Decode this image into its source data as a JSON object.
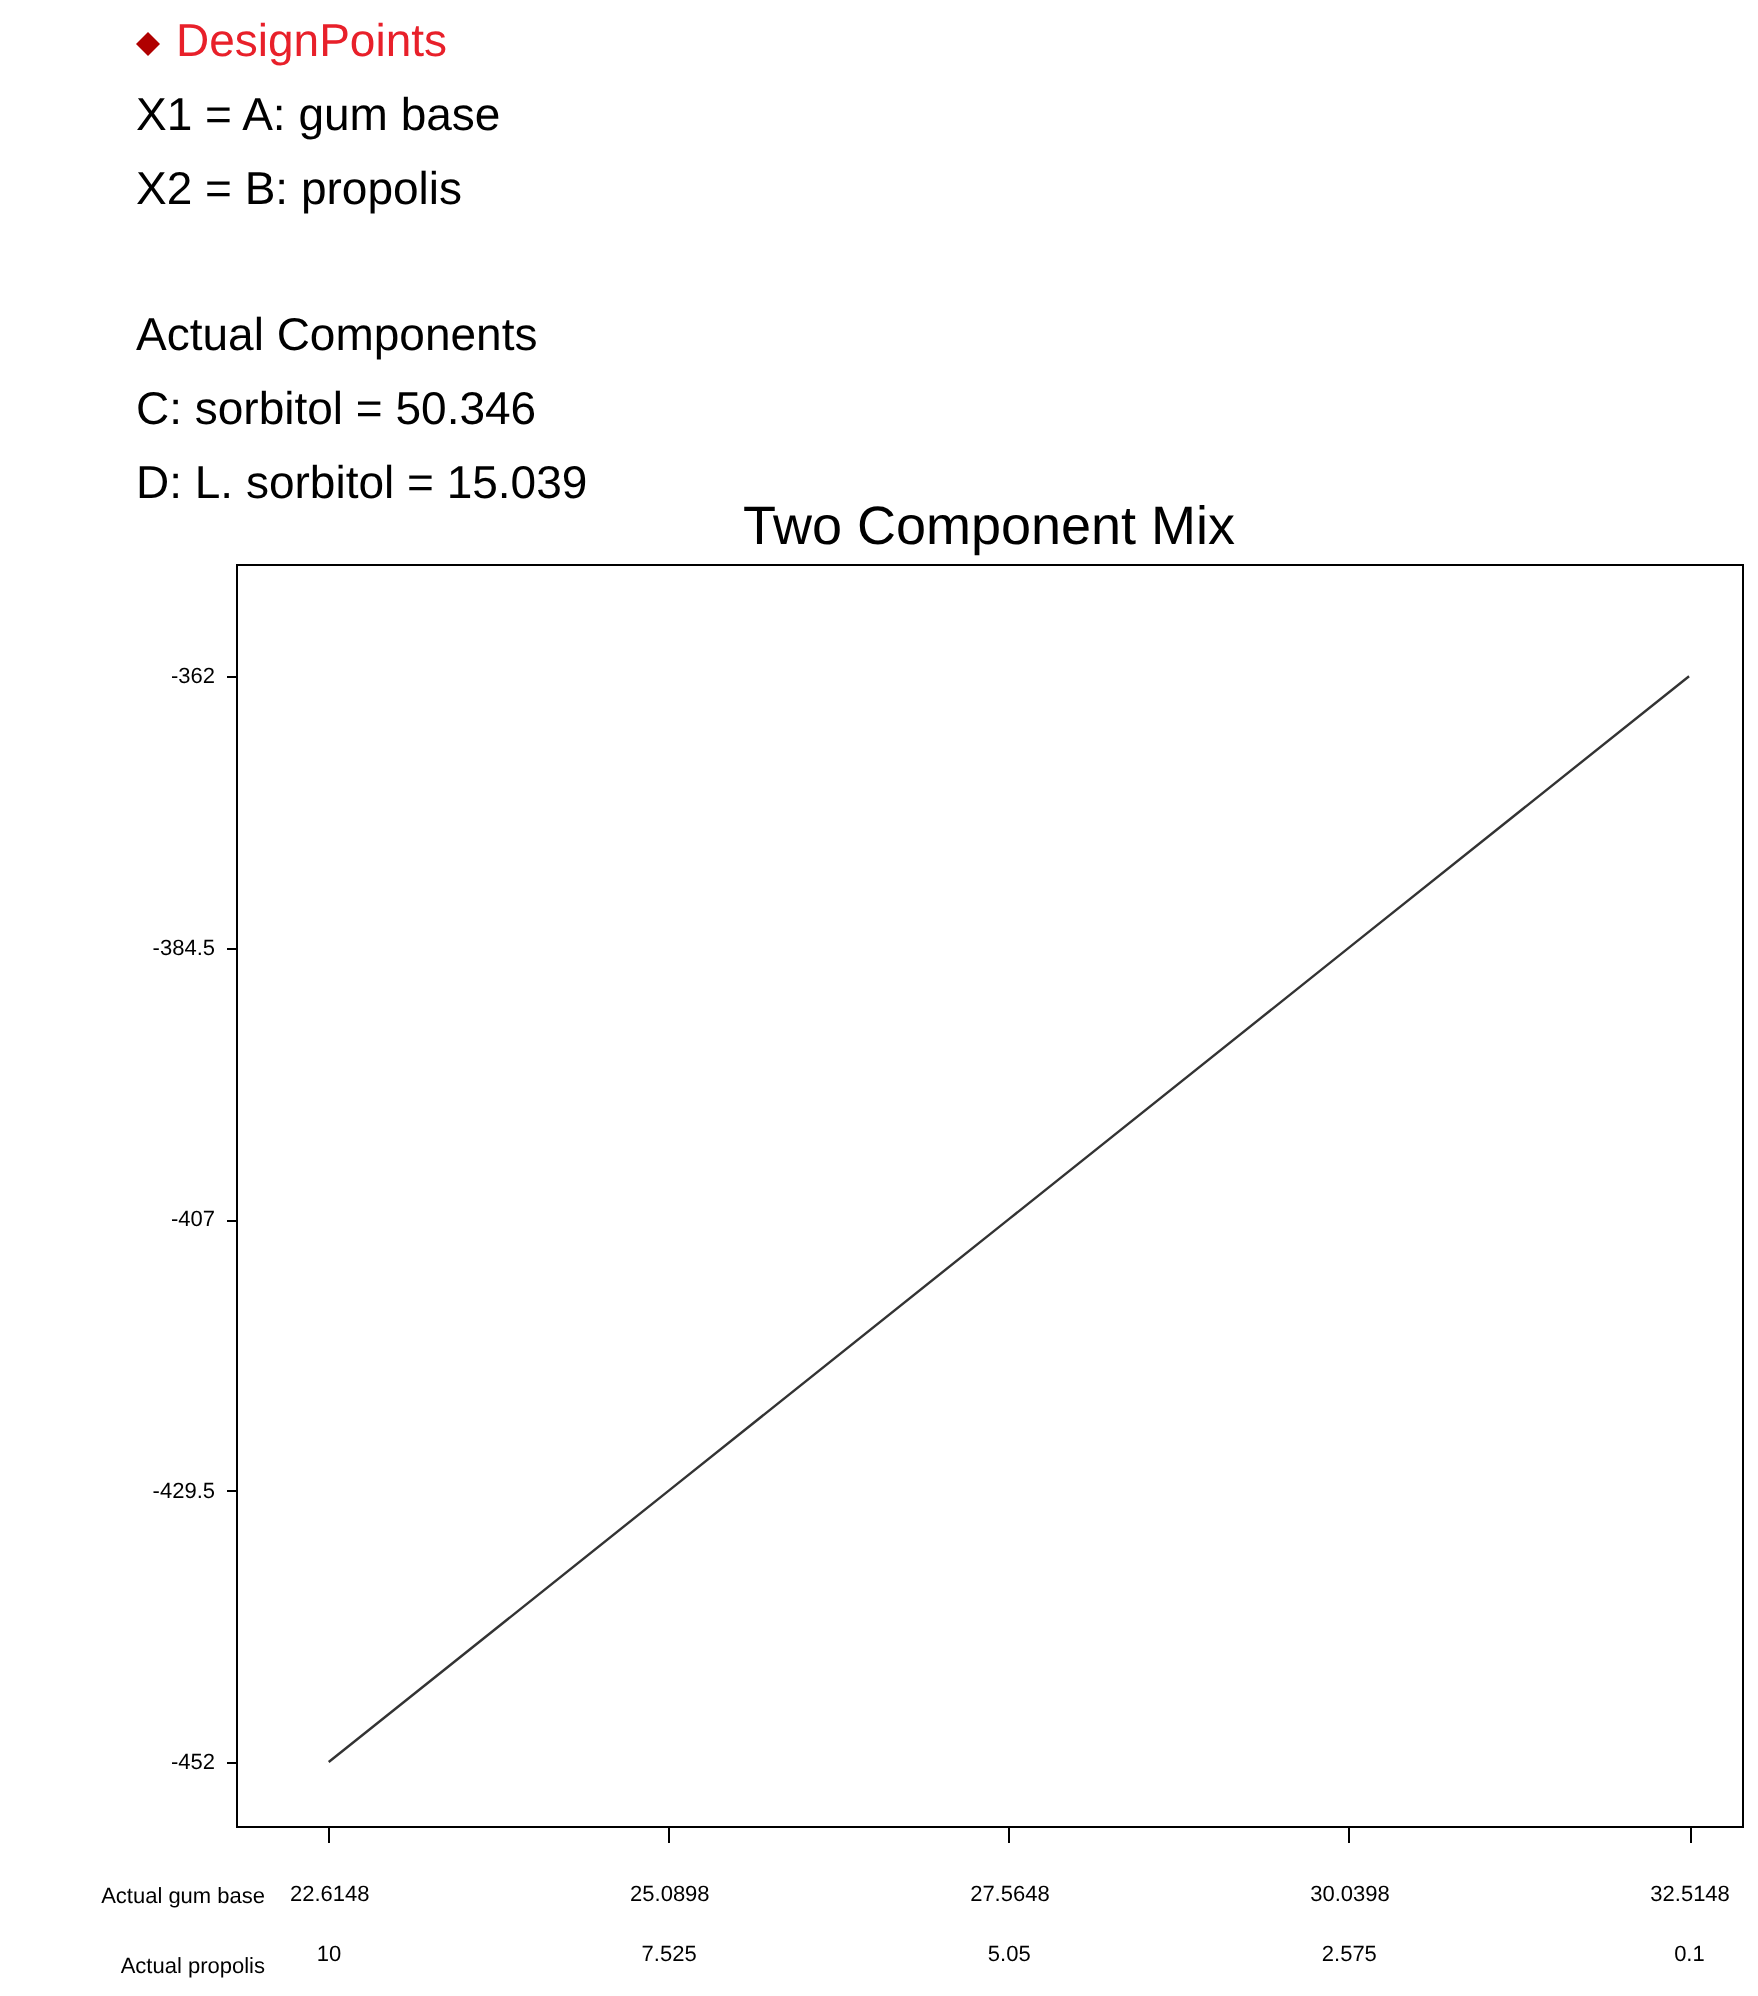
{
  "chart_data": {
    "type": "line",
    "title": "Two Component Mix",
    "annotations": [
      "DesignPoints",
      "X1 = A: gum base",
      "X2 = B: propolis",
      "Actual Components",
      "C: sorbitol = 50.346",
      "D: L. sorbitol = 15.039"
    ],
    "xlabel": "Actual gum base",
    "x2label": "Actual propolis",
    "x": [
      22.6148,
      25.0898,
      27.5648,
      30.0398,
      32.5148
    ],
    "series": [
      {
        "color": "#333333",
        "values": [
          -452,
          -429.5,
          -407,
          -384.5,
          -362
        ]
      }
    ],
    "xlim": [
      21.94,
      32.9
    ],
    "xticks": [
      22.6148,
      25.0898,
      27.5648,
      30.0398,
      32.5148
    ],
    "x2lim": [
      10.67,
      -0.29
    ],
    "x2ticks": [
      10,
      7.525,
      5.05,
      2.575,
      0.1
    ],
    "ylim": [
      -457.3,
      -352.7
    ],
    "yticks": [
      -452,
      -429.5,
      -407,
      -384.5,
      -362
    ],
    "grid": false,
    "marker": "none",
    "line_style": "solid"
  }
}
